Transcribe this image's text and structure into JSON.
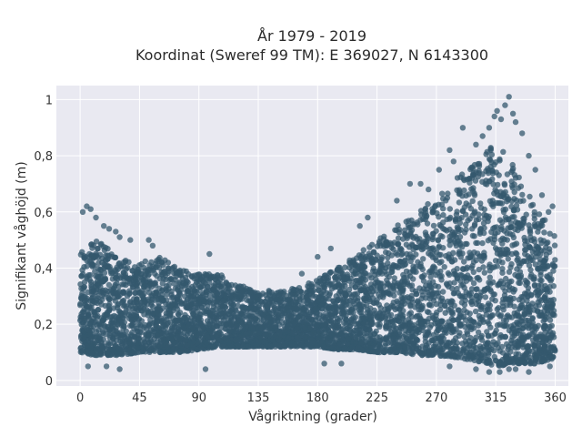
{
  "chart_data": {
    "type": "scatter",
    "title_line1": "År 1979 - 2019",
    "title_line2": "Koordinat (Sweref 99 TM): E 369027, N 6143300",
    "xlabel": "Vågriktning (grader)",
    "ylabel": "Signifikant våghöjd (m)",
    "xlim": [
      -18,
      370
    ],
    "ylim": [
      -0.02,
      1.05
    ],
    "xticks": [
      {
        "value": 0,
        "label": "0"
      },
      {
        "value": 45,
        "label": "45"
      },
      {
        "value": 90,
        "label": "90"
      },
      {
        "value": 135,
        "label": "135"
      },
      {
        "value": 180,
        "label": "180"
      },
      {
        "value": 225,
        "label": "225"
      },
      {
        "value": 270,
        "label": "270"
      },
      {
        "value": 315,
        "label": "315"
      },
      {
        "value": 360,
        "label": "360"
      }
    ],
    "yticks": [
      {
        "value": 0,
        "label": "0"
      },
      {
        "value": 0.2,
        "label": "0,2"
      },
      {
        "value": 0.4,
        "label": "0,4"
      },
      {
        "value": 0.6,
        "label": "0,6"
      },
      {
        "value": 0.8,
        "label": "0,8"
      },
      {
        "value": 1,
        "label": "1"
      }
    ],
    "grid": true,
    "marker_color": "#34586e",
    "plot_background": "#e9e9f1",
    "envelope": {
      "direction": [
        0,
        10,
        20,
        30,
        45,
        60,
        75,
        90,
        105,
        120,
        135,
        150,
        165,
        180,
        195,
        210,
        225,
        240,
        255,
        270,
        285,
        300,
        315,
        330,
        345,
        360
      ],
      "lower": [
        0.1,
        0.09,
        0.09,
        0.09,
        0.1,
        0.1,
        0.1,
        0.11,
        0.12,
        0.12,
        0.12,
        0.12,
        0.12,
        0.12,
        0.11,
        0.11,
        0.1,
        0.1,
        0.09,
        0.09,
        0.08,
        0.07,
        0.05,
        0.06,
        0.06,
        0.08
      ],
      "upper": [
        0.46,
        0.5,
        0.48,
        0.44,
        0.42,
        0.44,
        0.4,
        0.38,
        0.38,
        0.34,
        0.32,
        0.32,
        0.33,
        0.36,
        0.4,
        0.45,
        0.5,
        0.55,
        0.6,
        0.65,
        0.72,
        0.78,
        0.85,
        0.76,
        0.62,
        0.52
      ]
    },
    "outliers": [
      [
        2,
        0.6
      ],
      [
        5,
        0.62
      ],
      [
        8,
        0.61
      ],
      [
        12,
        0.58
      ],
      [
        18,
        0.55
      ],
      [
        22,
        0.54
      ],
      [
        27,
        0.53
      ],
      [
        30,
        0.51
      ],
      [
        38,
        0.5
      ],
      [
        52,
        0.5
      ],
      [
        55,
        0.48
      ],
      [
        98,
        0.45
      ],
      [
        168,
        0.38
      ],
      [
        180,
        0.44
      ],
      [
        190,
        0.47
      ],
      [
        212,
        0.55
      ],
      [
        218,
        0.58
      ],
      [
        240,
        0.64
      ],
      [
        250,
        0.7
      ],
      [
        258,
        0.7
      ],
      [
        264,
        0.68
      ],
      [
        272,
        0.75
      ],
      [
        280,
        0.82
      ],
      [
        283,
        0.78
      ],
      [
        290,
        0.9
      ],
      [
        300,
        0.84
      ],
      [
        305,
        0.87
      ],
      [
        310,
        0.9
      ],
      [
        314,
        0.94
      ],
      [
        316,
        0.96
      ],
      [
        319,
        0.93
      ],
      [
        322,
        0.98
      ],
      [
        325,
        1.01
      ],
      [
        328,
        0.95
      ],
      [
        330,
        0.92
      ],
      [
        335,
        0.88
      ],
      [
        340,
        0.8
      ],
      [
        345,
        0.75
      ],
      [
        350,
        0.66
      ],
      [
        355,
        0.6
      ],
      [
        358,
        0.62
      ],
      [
        6,
        0.05
      ],
      [
        20,
        0.05
      ],
      [
        30,
        0.04
      ],
      [
        95,
        0.04
      ],
      [
        185,
        0.06
      ],
      [
        198,
        0.06
      ],
      [
        280,
        0.05
      ],
      [
        300,
        0.04
      ],
      [
        310,
        0.03
      ],
      [
        318,
        0.03
      ],
      [
        325,
        0.04
      ],
      [
        330,
        0.04
      ],
      [
        340,
        0.03
      ],
      [
        356,
        0.05
      ]
    ]
  }
}
